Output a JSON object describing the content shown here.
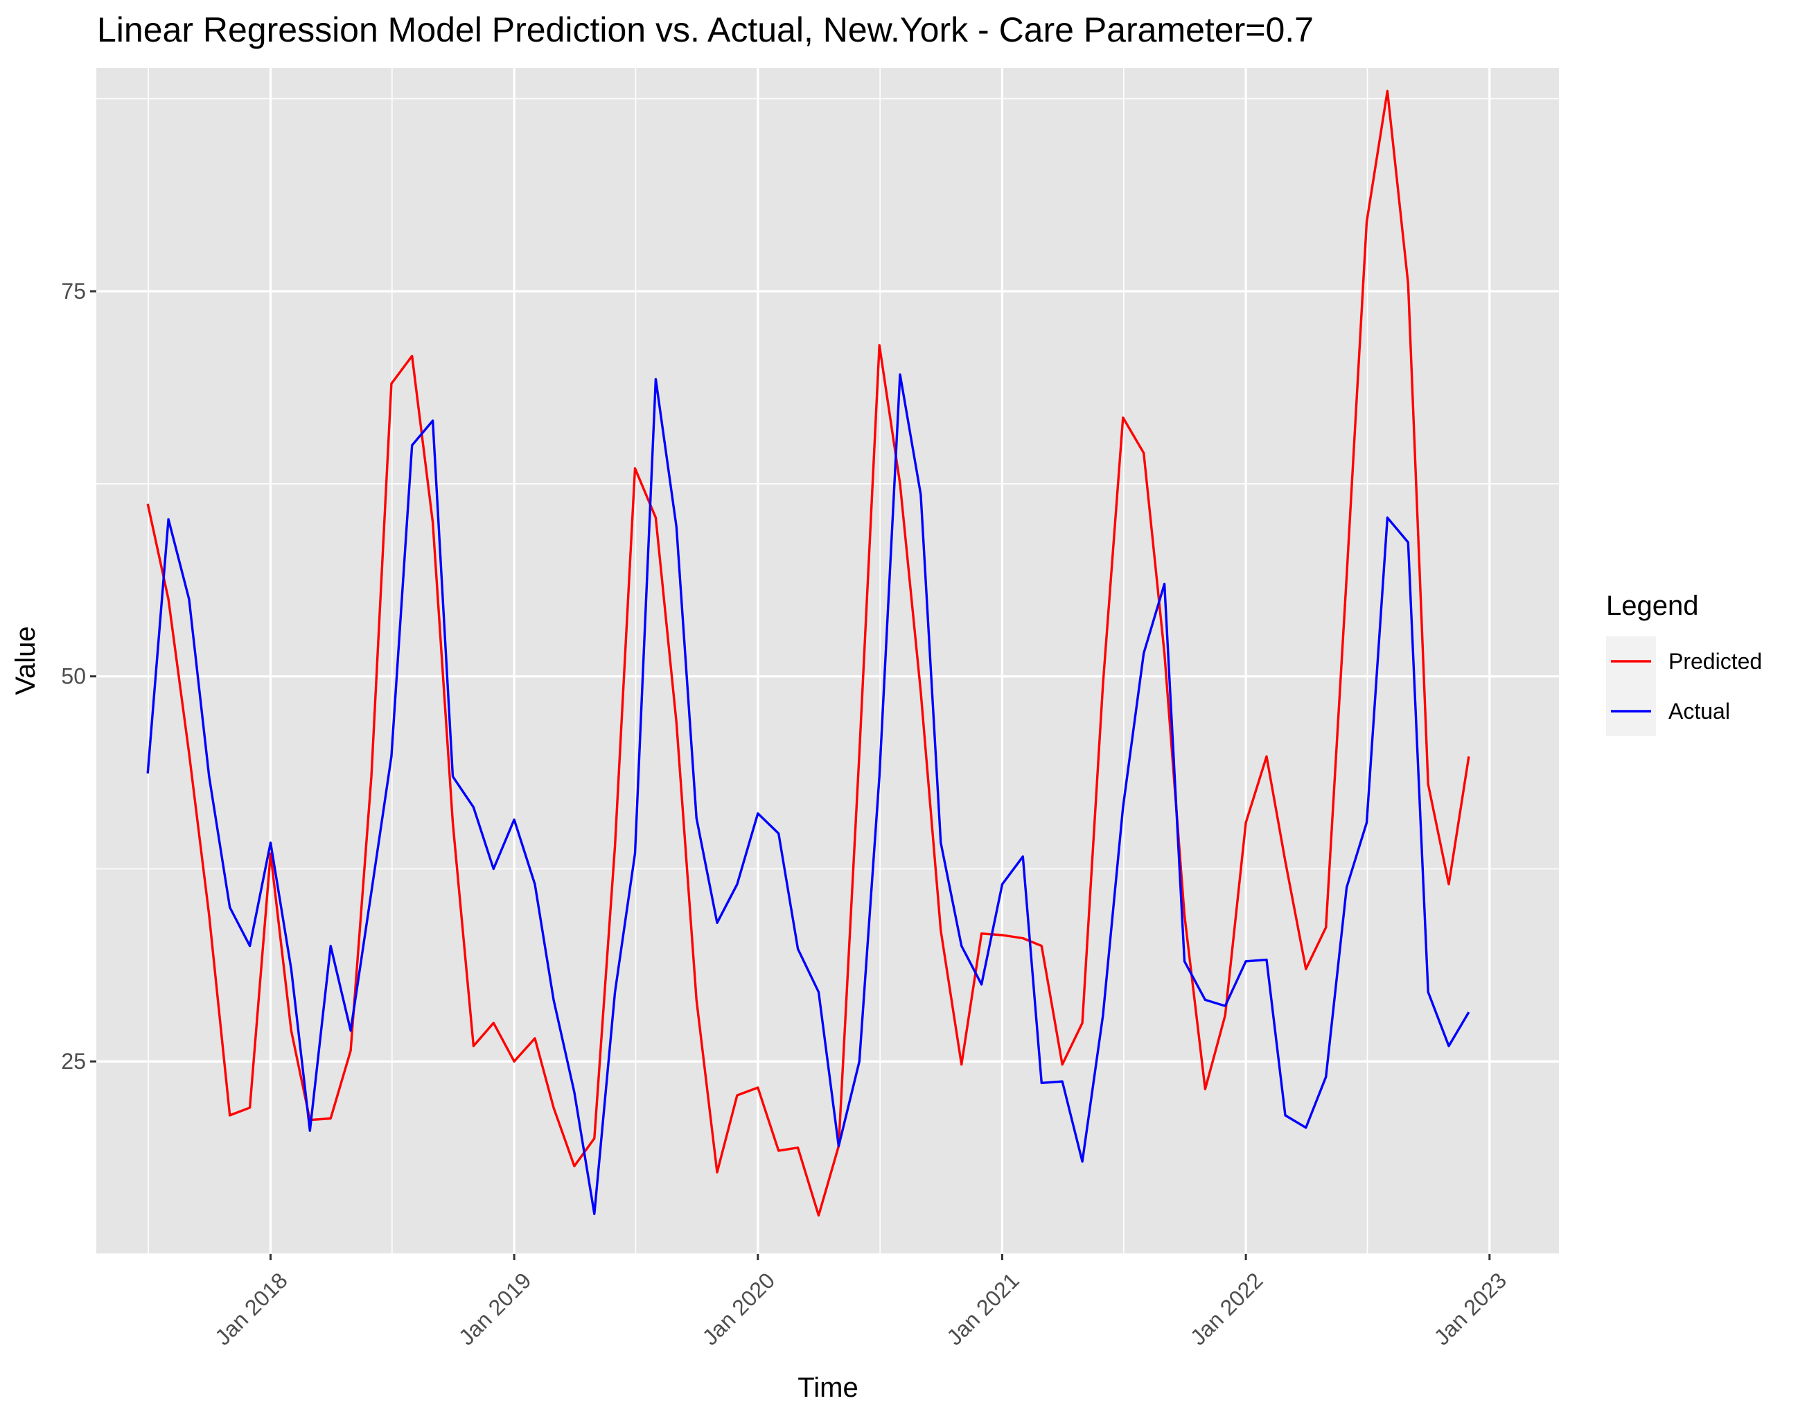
{
  "chart_data": {
    "type": "line",
    "title": "Linear Regression Model Prediction vs. Actual, New.York - Care Parameter=0.7",
    "xlabel": "Time",
    "ylabel": "Value",
    "x_ticks": [
      "Jan 2018",
      "Jan 2019",
      "Jan 2020",
      "Jan 2021",
      "Jan 2022",
      "Jan 2023"
    ],
    "y_ticks": [
      25,
      50,
      75
    ],
    "ylim": [
      12.5,
      89.5
    ],
    "xlim": [
      "2017-04-15",
      "2023-04-15"
    ],
    "grid": true,
    "legend_title": "Legend",
    "legend_position": "right",
    "x": [
      "2017-07-01",
      "2017-08-01",
      "2017-09-01",
      "2017-10-01",
      "2017-11-01",
      "2017-12-01",
      "2018-01-01",
      "2018-02-01",
      "2018-03-01",
      "2018-04-01",
      "2018-05-01",
      "2018-06-01",
      "2018-07-01",
      "2018-08-01",
      "2018-09-01",
      "2018-10-01",
      "2018-11-01",
      "2018-12-01",
      "2019-01-01",
      "2019-02-01",
      "2019-03-01",
      "2019-04-01",
      "2019-05-01",
      "2019-06-01",
      "2019-07-01",
      "2019-08-01",
      "2019-09-01",
      "2019-10-01",
      "2019-11-01",
      "2019-12-01",
      "2020-01-01",
      "2020-02-01",
      "2020-03-01",
      "2020-04-01",
      "2020-05-01",
      "2020-06-01",
      "2020-07-01",
      "2020-08-01",
      "2020-09-01",
      "2020-10-01",
      "2020-11-01",
      "2020-12-01",
      "2021-01-01",
      "2021-02-01",
      "2021-03-01",
      "2021-04-01",
      "2021-05-01",
      "2021-06-01",
      "2021-07-01",
      "2021-08-01",
      "2021-09-01",
      "2021-10-01",
      "2021-11-01",
      "2021-12-01",
      "2022-01-01",
      "2022-02-01",
      "2022-03-01",
      "2022-04-01",
      "2022-05-01",
      "2022-06-01",
      "2022-07-01",
      "2022-08-01",
      "2022-09-01",
      "2022-10-01",
      "2022-11-01",
      "2022-12-01"
    ],
    "series": [
      {
        "name": "Predicted",
        "color": "#ff0000",
        "values": [
          61.2,
          55.0,
          45.0,
          34.5,
          21.5,
          22.0,
          38.5,
          27.0,
          21.2,
          21.3,
          25.7,
          43.5,
          69.0,
          70.8,
          60.0,
          40.5,
          26.0,
          27.5,
          25.0,
          26.5,
          22.0,
          18.2,
          20.0,
          39.0,
          63.5,
          60.3,
          47.0,
          29.0,
          17.8,
          22.8,
          23.3,
          19.2,
          19.4,
          15.0,
          19.5,
          45.0,
          71.5,
          62.5,
          49.0,
          33.5,
          24.8,
          33.3,
          33.2,
          33.0,
          32.5,
          24.8,
          27.5,
          49.5,
          66.8,
          64.5,
          51.5,
          34.5,
          23.2,
          28.0,
          40.5,
          44.8,
          38.0,
          31.0,
          33.7,
          56.5,
          79.5,
          88.0,
          75.5,
          43.0,
          36.5,
          44.8
        ]
      },
      {
        "name": "Actual",
        "color": "#0000ff",
        "values": [
          43.7,
          60.2,
          55.0,
          43.5,
          35.0,
          32.5,
          39.2,
          31.0,
          20.5,
          32.5,
          27.0,
          36.0,
          44.8,
          65.0,
          66.6,
          43.5,
          41.5,
          37.5,
          40.7,
          36.5,
          29.0,
          23.0,
          15.1,
          29.5,
          38.5,
          69.3,
          59.7,
          40.8,
          34.0,
          36.5,
          41.1,
          39.8,
          32.3,
          29.5,
          19.5,
          25.0,
          43.5,
          69.6,
          61.8,
          39.2,
          32.5,
          30.0,
          36.5,
          38.3,
          23.6,
          23.7,
          18.5,
          28.0,
          41.5,
          51.5,
          56.0,
          31.5,
          29.0,
          28.6,
          31.5,
          31.6,
          21.5,
          20.7,
          24.0,
          36.3,
          40.5,
          60.3,
          58.7,
          29.5,
          26.0,
          28.2
        ]
      }
    ]
  }
}
